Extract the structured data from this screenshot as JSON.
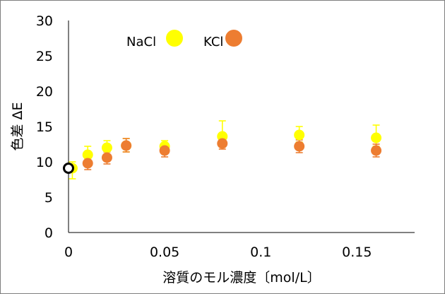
{
  "chart_data": {
    "type": "scatter",
    "xlabel": "溶質のモル濃度〔mol/L〕",
    "ylabel": "色差 ΔE",
    "xlim": [
      0,
      0.18
    ],
    "ylim": [
      0,
      30
    ],
    "x_ticks": [
      {
        "value": 0,
        "label": "0"
      },
      {
        "value": 0.05,
        "label": "0.05"
      },
      {
        "value": 0.1,
        "label": "0.1"
      },
      {
        "value": 0.15,
        "label": "0.15"
      }
    ],
    "y_ticks": [
      {
        "value": 0,
        "label": "0"
      },
      {
        "value": 5,
        "label": "5"
      },
      {
        "value": 10,
        "label": "10"
      },
      {
        "value": 15,
        "label": "15"
      },
      {
        "value": 20,
        "label": "20"
      },
      {
        "value": 25,
        "label": "25"
      },
      {
        "value": 30,
        "label": "30"
      }
    ],
    "grid": false,
    "legend_position": "top",
    "series": [
      {
        "name": "NaCl",
        "color": "#ffff00",
        "points": [
          {
            "x": 0.002,
            "y": 9.1,
            "err_up": 0.9,
            "err_down": 1.5
          },
          {
            "x": 0.01,
            "y": 11.0,
            "err_up": 1.2,
            "err_down": 1.1
          },
          {
            "x": 0.02,
            "y": 12.0,
            "err_up": 1.0,
            "err_down": 1.0
          },
          {
            "x": 0.03,
            "y": 12.3,
            "err_up": 1.0,
            "err_down": 0.9
          },
          {
            "x": 0.05,
            "y": 12.2,
            "err_up": 0.8,
            "err_down": 0.8
          },
          {
            "x": 0.08,
            "y": 13.6,
            "err_up": 2.2,
            "err_down": 1.5
          },
          {
            "x": 0.12,
            "y": 13.8,
            "err_up": 1.2,
            "err_down": 1.0
          },
          {
            "x": 0.16,
            "y": 13.4,
            "err_up": 1.8,
            "err_down": 1.2
          }
        ]
      },
      {
        "name": "KCl",
        "color": "#ed7d31",
        "points": [
          {
            "x": 0.01,
            "y": 9.8,
            "err_up": 0.7,
            "err_down": 0.9
          },
          {
            "x": 0.02,
            "y": 10.6,
            "err_up": 0.8,
            "err_down": 0.9
          },
          {
            "x": 0.03,
            "y": 12.3,
            "err_up": 1.0,
            "err_down": 0.9
          },
          {
            "x": 0.05,
            "y": 11.6,
            "err_up": 1.0,
            "err_down": 0.9
          },
          {
            "x": 0.08,
            "y": 12.6,
            "err_up": 0.8,
            "err_down": 0.8
          },
          {
            "x": 0.12,
            "y": 12.2,
            "err_up": 0.9,
            "err_down": 0.9
          },
          {
            "x": 0.16,
            "y": 11.6,
            "err_up": 0.9,
            "err_down": 0.9
          }
        ]
      }
    ],
    "baseline_point": {
      "x": 0,
      "y": 9.1
    }
  }
}
